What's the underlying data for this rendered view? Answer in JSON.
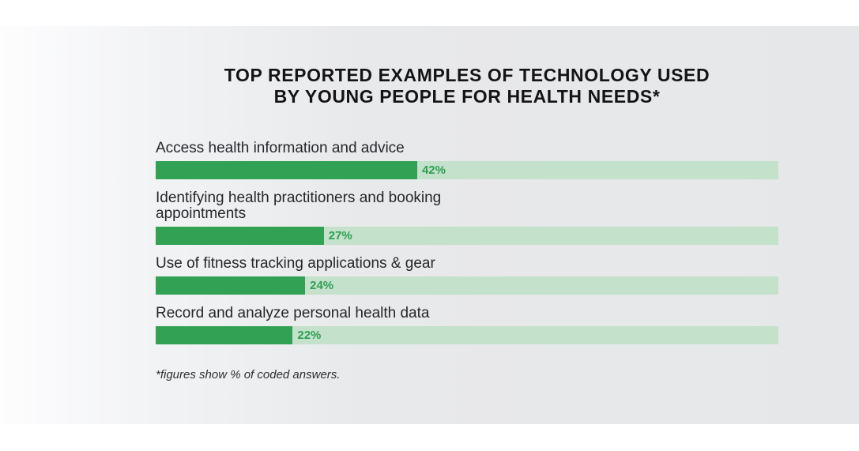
{
  "page": {
    "background_color": "#ffffff",
    "panel_gradient_left": "#fdfdfe",
    "panel_gradient_right": "#e6e7e9"
  },
  "chart_data": {
    "type": "bar",
    "orientation": "horizontal",
    "title": "TOP REPORTED EXAMPLES OF TECHNOLOGY USED\nBY YOUNG PEOPLE FOR HEALTH NEEDS*",
    "categories": [
      "Access health information and advice",
      "Identifying health practitioners and booking\nappointments",
      "Use of fitness tracking applications & gear",
      "Record and analyze personal health data"
    ],
    "values": [
      42,
      27,
      24,
      22
    ],
    "value_suffix": "%",
    "xlim": [
      0,
      100
    ],
    "grid": false,
    "legend": false,
    "bar_color": "#31a154",
    "track_color": "#c3e1cb",
    "value_label_color": "#2f9e53",
    "footnote": "*figures show % of coded answers."
  }
}
